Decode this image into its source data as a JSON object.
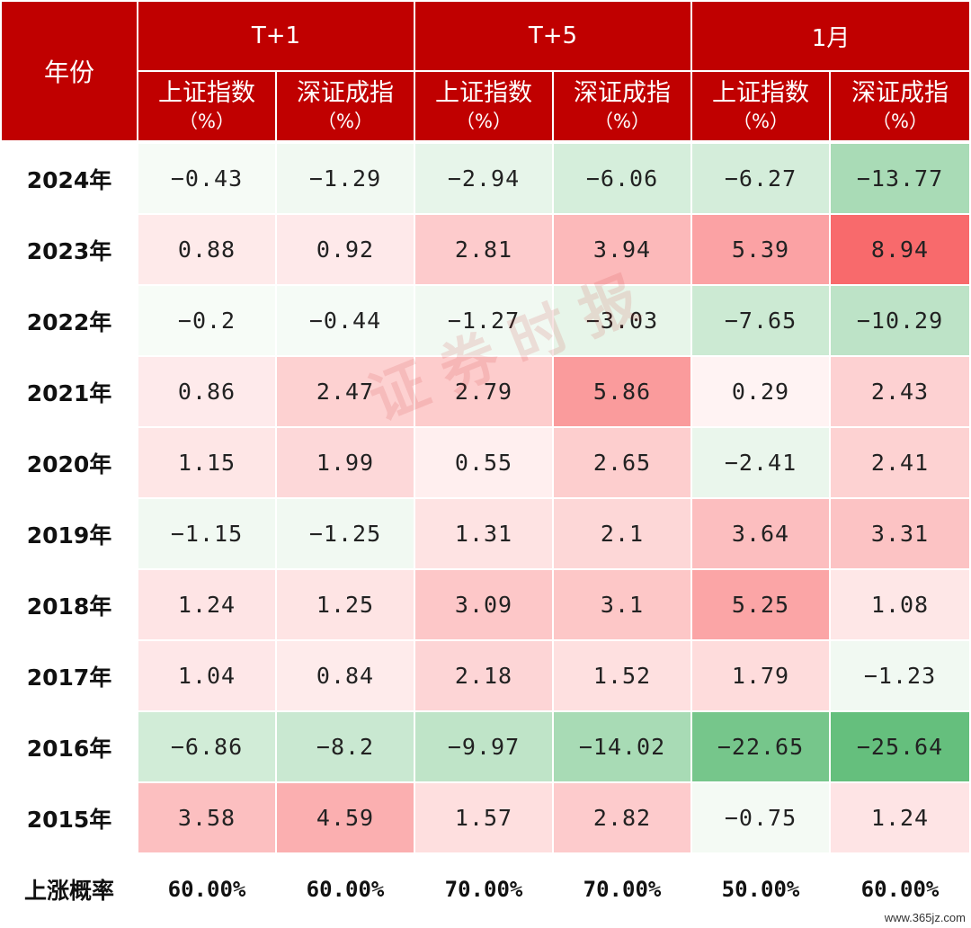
{
  "table": {
    "year_header": "年份",
    "groups": [
      "T+1",
      "T+5",
      "1月"
    ],
    "sub_headers": [
      "上证指数",
      "深证成指",
      "上证指数",
      "深证成指",
      "上证指数",
      "深证成指"
    ],
    "unit": "（%）",
    "rows": [
      {
        "year": "2024年",
        "values": [
          "−0.43",
          "−1.29",
          "−2.94",
          "−6.06",
          "−6.27",
          "−13.77"
        ]
      },
      {
        "year": "2023年",
        "values": [
          "0.88",
          "0.92",
          "2.81",
          "3.94",
          "5.39",
          "8.94"
        ]
      },
      {
        "year": "2022年",
        "values": [
          "−0.2",
          "−0.44",
          "−1.27",
          "−3.03",
          "−7.65",
          "−10.29"
        ]
      },
      {
        "year": "2021年",
        "values": [
          "0.86",
          "2.47",
          "2.79",
          "5.86",
          "0.29",
          "2.43"
        ]
      },
      {
        "year": "2020年",
        "values": [
          "1.15",
          "1.99",
          "0.55",
          "2.65",
          "−2.41",
          "2.41"
        ]
      },
      {
        "year": "2019年",
        "values": [
          "−1.15",
          "−1.25",
          "1.31",
          "2.1",
          "3.64",
          "3.31"
        ]
      },
      {
        "year": "2018年",
        "values": [
          "1.24",
          "1.25",
          "3.09",
          "3.1",
          "5.25",
          "1.08"
        ]
      },
      {
        "year": "2017年",
        "values": [
          "1.04",
          "0.84",
          "2.18",
          "1.52",
          "1.79",
          "−1.23"
        ]
      },
      {
        "year": "2016年",
        "values": [
          "−6.86",
          "−8.2",
          "−9.97",
          "−14.02",
          "−22.65",
          "−25.64"
        ]
      },
      {
        "year": "2015年",
        "values": [
          "3.58",
          "4.59",
          "1.57",
          "2.82",
          "−0.75",
          "1.24"
        ]
      }
    ],
    "footer": {
      "label": "上涨概率",
      "values": [
        "60.00%",
        "60.00%",
        "70.00%",
        "70.00%",
        "50.00%",
        "60.00%"
      ]
    }
  },
  "watermark": "证券时报",
  "site": "www.365jz.com",
  "colors": {
    "header_bg": "#c00000",
    "header_text": "#ffffff",
    "positive": "#f8696b",
    "negative": "#63be7b"
  }
}
